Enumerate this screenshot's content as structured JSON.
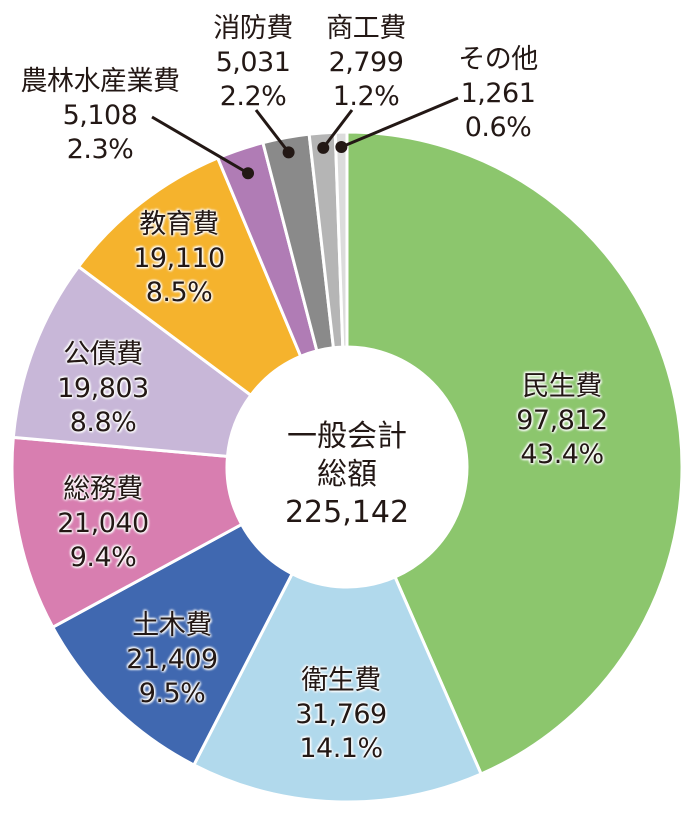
{
  "chart_data": {
    "type": "pie",
    "subtype": "donut",
    "title": "",
    "center_label": {
      "line1": "一般会計",
      "line2": "総額",
      "total": "225,142"
    },
    "start_angle_deg": 0,
    "direction": "clockwise",
    "slices": [
      {
        "name": "民生費",
        "value": 97812,
        "value_label": "97,812",
        "percent": 43.4,
        "percent_label": "43.4%",
        "color": "#8CC66D"
      },
      {
        "name": "衛生費",
        "value": 31769,
        "value_label": "31,769",
        "percent": 14.1,
        "percent_label": "14.1%",
        "color": "#B1D9EC"
      },
      {
        "name": "土木費",
        "value": 21409,
        "value_label": "21,409",
        "percent": 9.5,
        "percent_label": "9.5%",
        "color": "#4068B0"
      },
      {
        "name": "総務費",
        "value": 21040,
        "value_label": "21,040",
        "percent": 9.4,
        "percent_label": "9.4%",
        "color": "#D87EB0"
      },
      {
        "name": "公債費",
        "value": 19803,
        "value_label": "19,803",
        "percent": 8.8,
        "percent_label": "8.8%",
        "color": "#C8B7D8"
      },
      {
        "name": "教育費",
        "value": 19110,
        "value_label": "19,110",
        "percent": 8.5,
        "percent_label": "8.5%",
        "color": "#F5B32D"
      },
      {
        "name": "農林水産業費",
        "value": 5108,
        "value_label": "5,108",
        "percent": 2.3,
        "percent_label": "2.3%",
        "color": "#B07CB5"
      },
      {
        "name": "消防費",
        "value": 5031,
        "value_label": "5,031",
        "percent": 2.2,
        "percent_label": "2.2%",
        "color": "#8A8A8A"
      },
      {
        "name": "商工費",
        "value": 2799,
        "value_label": "2,799",
        "percent": 1.2,
        "percent_label": "1.2%",
        "color": "#B5B5B5"
      },
      {
        "name": "その他",
        "value": 1261,
        "value_label": "1,261",
        "percent": 0.6,
        "percent_label": "0.6%",
        "color": "#DCDCDC"
      }
    ],
    "legend": "none",
    "labels": "inside slices for large segments; leader lines with dots for small top segments"
  }
}
